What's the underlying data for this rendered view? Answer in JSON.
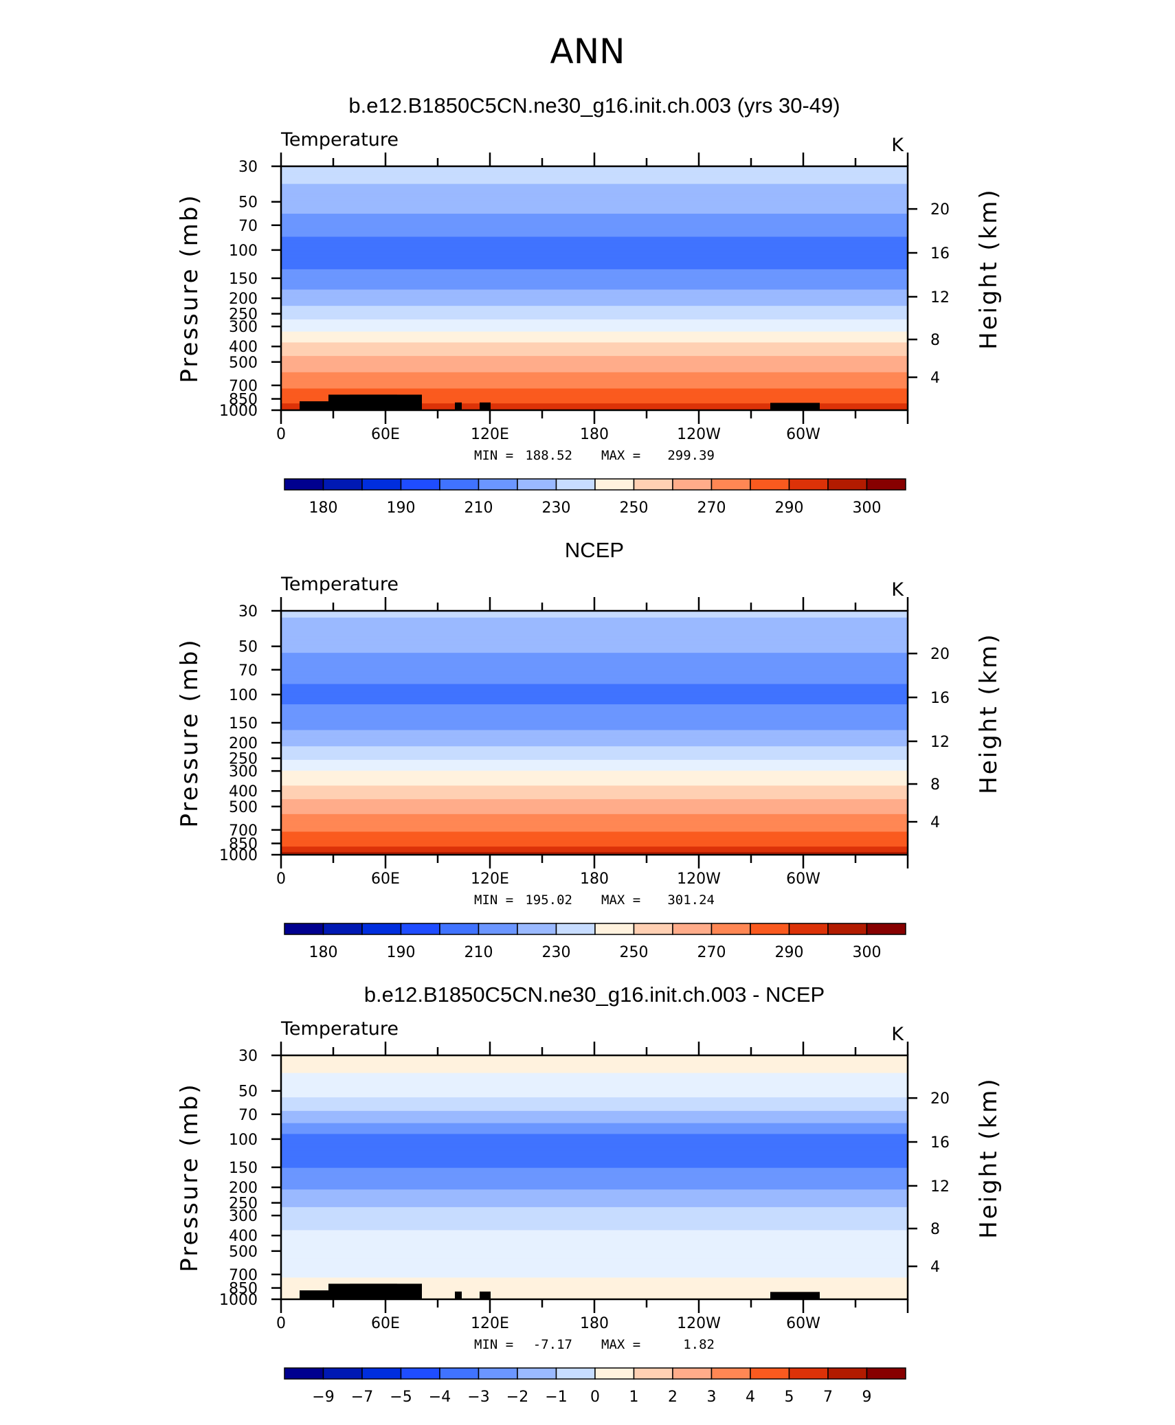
{
  "figure": {
    "title": "ANN"
  },
  "colors": {
    "blue_red_palette": [
      "#00008f",
      "#0019b3",
      "#002ede",
      "#1f4dff",
      "#4073ff",
      "#6b96ff",
      "#9ab9ff",
      "#c7dcff",
      "#e6f1ff",
      "#fff2de",
      "#ffd0b3",
      "#ffac8a",
      "#ff8754",
      "#fa5a1f",
      "#dc3208",
      "#b21b00",
      "#870000"
    ],
    "topography": "#000000"
  },
  "chart_data": [
    {
      "type": "heatmap",
      "title": "b.e12.B1850C5CN.ne30_g16.init.ch.003 (yrs 30-49)",
      "left_label": "Temperature",
      "right_label": "K",
      "xlabel": "",
      "ylabel": "Pressure (mb)",
      "ylabel_right": "Height (km)",
      "x_ticks": [
        "0",
        "60E",
        "120E",
        "180",
        "120W",
        "60W"
      ],
      "y_ticks": [
        "30",
        "50",
        "70",
        "100",
        "150",
        "200",
        "250",
        "300",
        "400",
        "500",
        "700",
        "850",
        "1000"
      ],
      "y_ticks_right": [
        "20",
        "16",
        "12",
        "8",
        "4"
      ],
      "min_label": "MIN =",
      "min_value": "188.52",
      "max_label": "MAX =",
      "max_value": "299.39",
      "colorbar_labels": [
        "180",
        "190",
        "210",
        "230",
        "250",
        "270",
        "290",
        "300"
      ],
      "levels": [
        175,
        180,
        185,
        190,
        200,
        210,
        220,
        230,
        240,
        250,
        260,
        270,
        280,
        290,
        295,
        300
      ],
      "profile_pressure_mb": [
        30,
        50,
        70,
        100,
        150,
        200,
        250,
        300,
        400,
        500,
        700,
        850,
        1000
      ],
      "profile_temperature_K": [
        225,
        215,
        205,
        194,
        203,
        215,
        225,
        236,
        253,
        264,
        278,
        287,
        295
      ]
    },
    {
      "type": "heatmap",
      "title": "NCEP",
      "left_label": "Temperature",
      "right_label": "K",
      "xlabel": "",
      "ylabel": "Pressure (mb)",
      "ylabel_right": "Height (km)",
      "x_ticks": [
        "0",
        "60E",
        "120E",
        "180",
        "120W",
        "60W"
      ],
      "y_ticks": [
        "30",
        "50",
        "70",
        "100",
        "150",
        "200",
        "250",
        "300",
        "400",
        "500",
        "700",
        "850",
        "1000"
      ],
      "y_ticks_right": [
        "20",
        "16",
        "12",
        "8",
        "4"
      ],
      "min_label": "MIN =",
      "min_value": "195.02",
      "max_label": "MAX =",
      "max_value": "301.24",
      "colorbar_labels": [
        "180",
        "190",
        "210",
        "230",
        "250",
        "270",
        "290",
        "300"
      ],
      "levels": [
        175,
        180,
        185,
        190,
        200,
        210,
        220,
        230,
        240,
        250,
        260,
        270,
        280,
        290,
        295,
        300
      ],
      "profile_pressure_mb": [
        30,
        50,
        70,
        100,
        150,
        200,
        250,
        300,
        400,
        500,
        700,
        850,
        1000
      ],
      "profile_temperature_K": [
        222,
        212,
        204,
        197,
        206,
        218,
        228,
        240,
        254,
        266,
        279,
        288,
        297
      ]
    },
    {
      "type": "heatmap",
      "title": "b.e12.B1850C5CN.ne30_g16.init.ch.003 - NCEP",
      "left_label": "Temperature",
      "right_label": "K",
      "xlabel": "",
      "ylabel": "Pressure (mb)",
      "ylabel_right": "Height (km)",
      "x_ticks": [
        "0",
        "60E",
        "120E",
        "180",
        "120W",
        "60W"
      ],
      "y_ticks": [
        "30",
        "50",
        "70",
        "100",
        "150",
        "200",
        "250",
        "300",
        "400",
        "500",
        "700",
        "850",
        "1000"
      ],
      "y_ticks_right": [
        "20",
        "16",
        "12",
        "8",
        "4"
      ],
      "min_label": "MIN =",
      "min_value": "-7.17",
      "max_label": "MAX =",
      "max_value": "1.82",
      "colorbar_labels": [
        "−9",
        "−7",
        "−5",
        "−4",
        "−3",
        "−2",
        "−1",
        "0",
        "1",
        "2",
        "3",
        "4",
        "5",
        "7",
        "9"
      ],
      "levels": [
        -10,
        -9,
        -8,
        -7,
        -6,
        -5,
        -4,
        -3,
        -2,
        -1,
        0,
        1,
        2,
        3,
        4,
        5,
        6,
        7,
        8
      ],
      "profile_pressure_mb": [
        30,
        50,
        70,
        100,
        150,
        200,
        250,
        300,
        400,
        500,
        700,
        850,
        1000
      ],
      "profile_temperature_K": [
        -0.5,
        -1.5,
        -3.2,
        -5.5,
        -5.0,
        -4.1,
        -3.2,
        -2.6,
        -1.8,
        -1.3,
        -1.2,
        -0.4,
        -0.8
      ]
    }
  ]
}
